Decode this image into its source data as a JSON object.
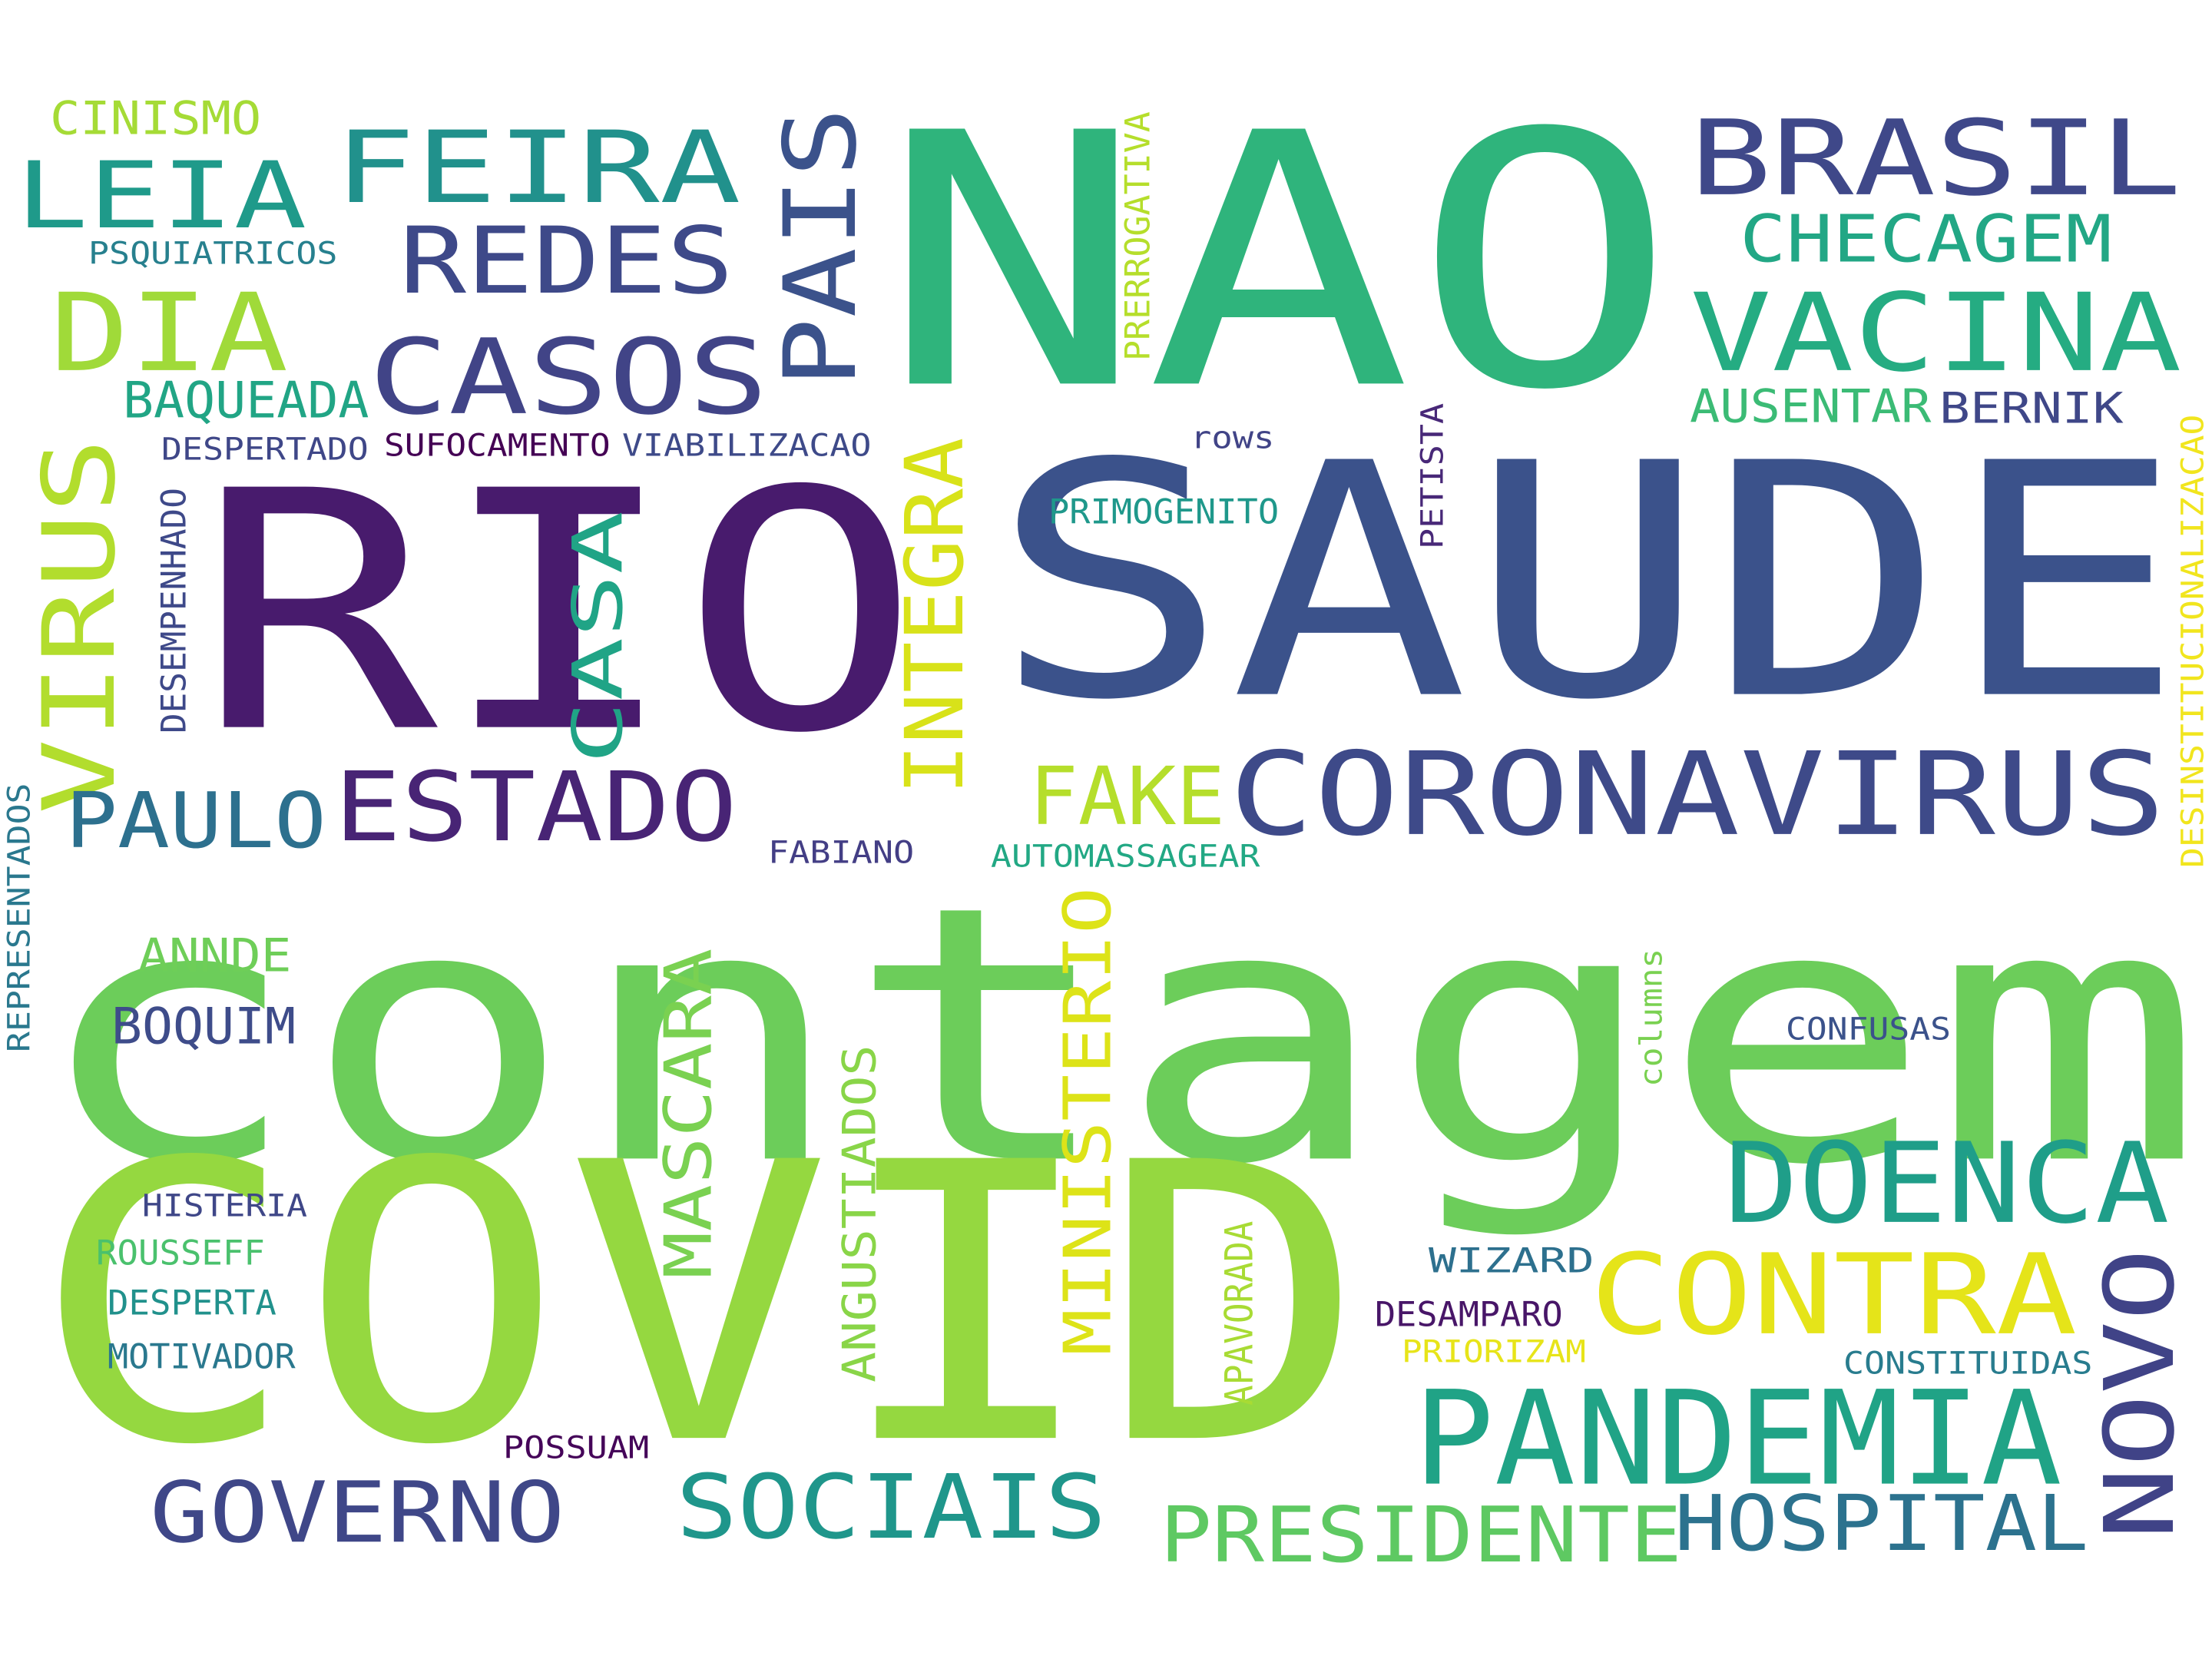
{
  "words": [
    {
      "text": "contagem",
      "color": "#6ccd5a"
    },
    {
      "text": "COVID",
      "color": "#95d840"
    },
    {
      "text": "RIO",
      "color": "#481b6d"
    },
    {
      "text": "SAUDE",
      "color": "#3b528b"
    },
    {
      "text": "NAO",
      "color": "#2fb47c"
    },
    {
      "text": "CORONAVIRUS",
      "color": "#3e4a89"
    },
    {
      "text": "PANDEMIA",
      "color": "#20a386"
    },
    {
      "text": "BRASIL",
      "color": "#3f4889"
    },
    {
      "text": "CONTRA",
      "color": "#e5e419"
    },
    {
      "text": "DOENCA",
      "color": "#1f9e89"
    },
    {
      "text": "VACINA",
      "color": "#25ac82"
    },
    {
      "text": "CASOS",
      "color": "#414487"
    },
    {
      "text": "ESTADO",
      "color": "#482475"
    },
    {
      "text": "FEIRA",
      "color": "#21918c"
    },
    {
      "text": "PAIS",
      "color": "#3b528b"
    },
    {
      "text": "LEIA",
      "color": "#1f9a8a"
    },
    {
      "text": "DIA",
      "color": "#a0da39"
    },
    {
      "text": "REDES",
      "color": "#3e4989"
    },
    {
      "text": "VIRUS",
      "color": "#b2dd2d"
    },
    {
      "text": "SOCIAIS",
      "color": "#1f968b"
    },
    {
      "text": "GOVERNO",
      "color": "#3f4788"
    },
    {
      "text": "PRESIDENTE",
      "color": "#5ec962"
    },
    {
      "text": "HOSPITAL",
      "color": "#2c728e"
    },
    {
      "text": "NOVO",
      "color": "#404387"
    },
    {
      "text": "FAKE",
      "color": "#b5de2b"
    },
    {
      "text": "PAULO",
      "color": "#2d708e"
    },
    {
      "text": "CHECAGEM",
      "color": "#22a785"
    },
    {
      "text": "INTEGRA",
      "color": "#d8e219"
    },
    {
      "text": "CASA",
      "color": "#20a486"
    },
    {
      "text": "MASCARA",
      "color": "#7ad151"
    },
    {
      "text": "MINISTERIO",
      "color": "#dde318"
    },
    {
      "text": "ANGUSTIADOS",
      "color": "#89d548"
    },
    {
      "text": "CINISMO",
      "color": "#a5db36"
    },
    {
      "text": "BAQUEADA",
      "color": "#21a585"
    },
    {
      "text": "AUSENTAR",
      "color": "#3bbb75"
    },
    {
      "text": "BERNIK",
      "color": "#3f4788"
    },
    {
      "text": "BOQUIM",
      "color": "#3e4c8a"
    },
    {
      "text": "ANNDE",
      "color": "#6ece58"
    },
    {
      "text": "PSQUIATRICOS",
      "color": "#27808e"
    },
    {
      "text": "DESPERTADO",
      "color": "#3f4788"
    },
    {
      "text": "SUFOCAMENTO",
      "color": "#440154"
    },
    {
      "text": "VIABILIZACAO",
      "color": "#3e4a89"
    },
    {
      "text": "rows",
      "color": "#414487"
    },
    {
      "text": "PRIMOGENITO",
      "color": "#1f988b"
    },
    {
      "text": "PETISTA",
      "color": "#482878"
    },
    {
      "text": "PRERROGATIVA",
      "color": "#b5de2b"
    },
    {
      "text": "DESINSTITUCIONALIZACAO",
      "color": "#f1e51d"
    },
    {
      "text": "DESEMPENHADO",
      "color": "#3e4989"
    },
    {
      "text": "REPRESENTADOS",
      "color": "#2a788e"
    },
    {
      "text": "FABIANO",
      "color": "#433e85"
    },
    {
      "text": "AUTOMASSAGEAR",
      "color": "#22a884"
    },
    {
      "text": "columns",
      "color": "#7ad151"
    },
    {
      "text": "CONFUSAS",
      "color": "#3b528b"
    },
    {
      "text": "HISTERIA",
      "color": "#3f4788"
    },
    {
      "text": "ROUSSEFF",
      "color": "#4ac16d"
    },
    {
      "text": "DESPERTA",
      "color": "#21918c"
    },
    {
      "text": "MOTIVADOR",
      "color": "#2a788e"
    },
    {
      "text": "APAVORADA",
      "color": "#a8db34"
    },
    {
      "text": "WIZARD",
      "color": "#2d708e"
    },
    {
      "text": "DESAMPARO",
      "color": "#481668"
    },
    {
      "text": "PRIORIZAM",
      "color": "#e7e419"
    },
    {
      "text": "CONSTITUIDAS",
      "color": "#287c8e"
    },
    {
      "text": "POSSUAM",
      "color": "#450559"
    }
  ]
}
